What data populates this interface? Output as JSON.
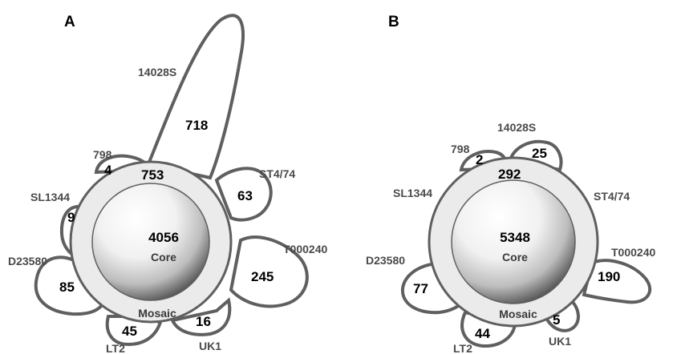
{
  "panels": [
    {
      "label": "A",
      "ring_count": "753",
      "core_count": "4056",
      "core_label": "Core",
      "mosaic_label": "Mosaic",
      "strains": [
        {
          "name": "14028S",
          "count": "718"
        },
        {
          "name": "ST4/74",
          "count": "63"
        },
        {
          "name": "T000240",
          "count": "245"
        },
        {
          "name": "UK1",
          "count": "16"
        },
        {
          "name": "LT2",
          "count": "45"
        },
        {
          "name": "D23580",
          "count": "85"
        },
        {
          "name": "SL1344",
          "count": "9"
        },
        {
          "name": "798",
          "count": "4"
        }
      ]
    },
    {
      "label": "B",
      "ring_count": "292",
      "core_count": "5348",
      "core_label": "Core",
      "mosaic_label": "Mosaic",
      "strains": [
        {
          "name": "14028S",
          "count": "25"
        },
        {
          "name": "ST4/74",
          "count": ""
        },
        {
          "name": "T000240",
          "count": "190"
        },
        {
          "name": "UK1",
          "count": "5"
        },
        {
          "name": "LT2",
          "count": "44"
        },
        {
          "name": "D23580",
          "count": "77"
        },
        {
          "name": "SL1344",
          "count": ""
        },
        {
          "name": "798",
          "count": "2"
        }
      ]
    }
  ]
}
